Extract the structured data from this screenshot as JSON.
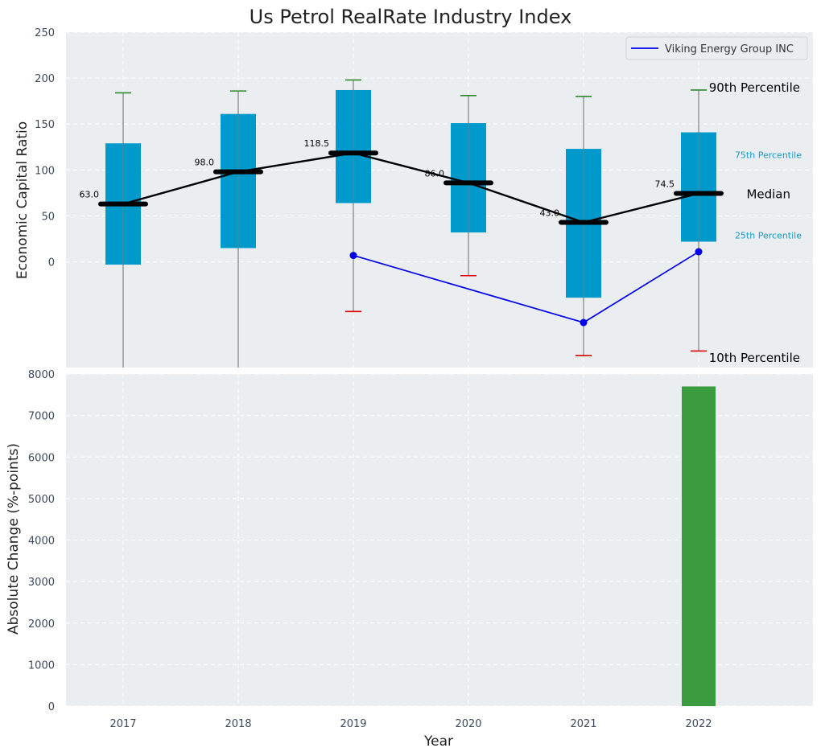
{
  "colors": {
    "panel_bg": "#eaeef0",
    "grid": "#ffffff",
    "box": "#0099cc",
    "median": "#000000",
    "p90_cap": "#2e8b2e",
    "p10_cap": "#dd0000",
    "company_line": "#0000ee",
    "bar": "#3a9c3f",
    "whisker": "#808080"
  },
  "chart_data": [
    {
      "type": "box",
      "title": "Us Petrol RealRate Industry Index",
      "ylabel": "Economic Capital Ratio",
      "ylim": [
        -115,
        250
      ],
      "yticks": [
        0,
        50,
        100,
        150,
        200,
        250
      ],
      "categories": [
        "2017",
        "2018",
        "2019",
        "2020",
        "2021",
        "2022"
      ],
      "p10": [
        null,
        null,
        -54,
        -15,
        -102,
        -97
      ],
      "p25": [
        -3,
        15,
        64,
        32,
        -39,
        22
      ],
      "median": [
        63.0,
        98.0,
        118.5,
        86.0,
        43.0,
        74.5
      ],
      "p75": [
        129,
        161,
        187,
        151,
        123,
        141
      ],
      "p90": [
        184,
        186,
        198,
        181,
        180,
        187
      ],
      "median_labels": [
        "63.0",
        "98.0",
        "118.5",
        "86.0",
        "43.0",
        "74.5"
      ],
      "company_series": {
        "name": "Viking Energy Group INC",
        "x": [
          "2019",
          "2021",
          "2022"
        ],
        "values": [
          7,
          -66,
          11
        ]
      },
      "annotations": {
        "p90": "90th Percentile",
        "p75": "75th Percentile",
        "median": "Median",
        "p25": "25th Percentile",
        "p10": "10th Percentile"
      },
      "legend_position": "top-right"
    },
    {
      "type": "bar",
      "xlabel": "Year",
      "ylabel": "Absolute Change (%-points)",
      "ylim": [
        0,
        8000
      ],
      "yticks": [
        0,
        1000,
        2000,
        3000,
        4000,
        5000,
        6000,
        7000,
        8000
      ],
      "categories": [
        "2017",
        "2018",
        "2019",
        "2020",
        "2021",
        "2022"
      ],
      "values": [
        0,
        0,
        0,
        0,
        0,
        7700
      ]
    }
  ]
}
